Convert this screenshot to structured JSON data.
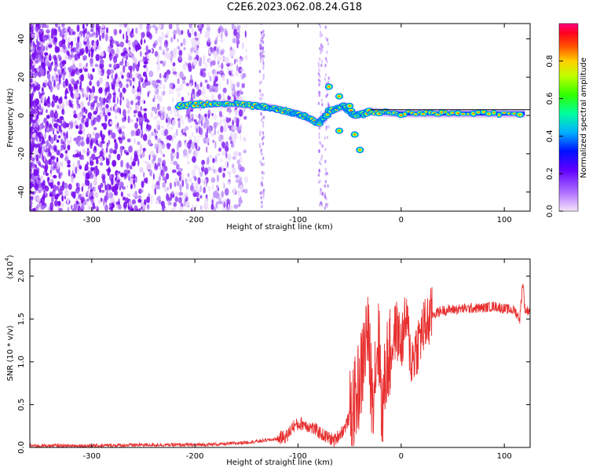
{
  "title": "C2E6.2023.062.08.24.G18",
  "chart_data": [
    {
      "type": "heatmap",
      "xlabel": "Height of straight line (km)",
      "ylabel": "Frequency (Hz)",
      "xlim": [
        -360,
        125
      ],
      "ylim": [
        -50,
        48
      ],
      "x_ticks": [
        -300,
        -200,
        -100,
        0,
        100
      ],
      "y_ticks": [
        -40,
        -20,
        0,
        20,
        40
      ],
      "colorbar": {
        "label": "Normalized spectral amplitude",
        "ticks": [
          "0.0",
          "0.2",
          "0.4",
          "0.6",
          "0.8"
        ],
        "range": [
          0,
          1
        ],
        "colors": [
          "#f0d8f8",
          "#a060ff",
          "#7000ff",
          "#0000ff",
          "#00c8ff",
          "#00ff80",
          "#40ff00",
          "#ffff00",
          "#ff8000",
          "#ff0000",
          "#ff0080"
        ]
      },
      "signal_track": [
        {
          "x": -215,
          "y": 5
        },
        {
          "x": -190,
          "y": 6
        },
        {
          "x": -160,
          "y": 6
        },
        {
          "x": -140,
          "y": 5
        },
        {
          "x": -125,
          "y": 4
        },
        {
          "x": -110,
          "y": 2
        },
        {
          "x": -95,
          "y": 0
        },
        {
          "x": -80,
          "y": -4
        },
        {
          "x": -70,
          "y": 2
        },
        {
          "x": -55,
          "y": 5
        },
        {
          "x": -45,
          "y": 0
        },
        {
          "x": -30,
          "y": 2
        },
        {
          "x": 0,
          "y": 1
        },
        {
          "x": 50,
          "y": 1
        },
        {
          "x": 120,
          "y": 1
        }
      ]
    },
    {
      "type": "line",
      "xlabel": "Height of straight line (km)",
      "ylabel": "SNR (10 * v/v)",
      "y_multiplier": "(x10",
      "y_multiplier_exp": "4",
      "xlim": [
        -360,
        125
      ],
      "ylim": [
        0,
        2.2
      ],
      "x_ticks": [
        -300,
        -200,
        -100,
        0,
        100
      ],
      "y_ticks": [
        "0.0",
        "0.5",
        "1.0",
        "1.5",
        "2.0"
      ],
      "color": "#e83030",
      "series": [
        {
          "x": [
            -360,
            -300,
            -250,
            -200,
            -170,
            -140,
            -120,
            -110,
            -105,
            -95,
            -85,
            -75,
            -65,
            -55,
            -45,
            -38,
            -33,
            -28,
            -22,
            -18,
            -15,
            -10,
            -5,
            0,
            5,
            10,
            20,
            30,
            40,
            60,
            80,
            90,
            100,
            110,
            115,
            118,
            120,
            125
          ],
          "y": [
            0.02,
            0.02,
            0.03,
            0.03,
            0.04,
            0.07,
            0.1,
            0.14,
            0.25,
            0.28,
            0.22,
            0.14,
            0.08,
            0.22,
            0.5,
            0.9,
            1.4,
            0.6,
            1.3,
            0.35,
            0.95,
            1.1,
            1.4,
            1.2,
            1.5,
            1.0,
            1.35,
            1.55,
            1.6,
            1.62,
            1.63,
            1.65,
            1.62,
            1.6,
            1.5,
            1.95,
            1.6,
            1.6
          ]
        }
      ]
    }
  ]
}
